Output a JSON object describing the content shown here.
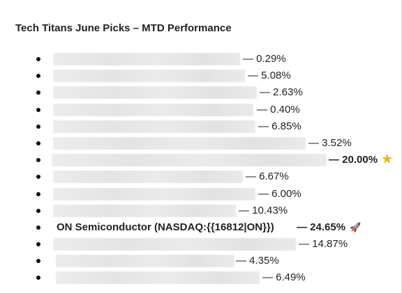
{
  "document": {
    "title": "Tech Titans June Picks – MTD Performance"
  },
  "picks": [
    {
      "name": "",
      "change": "— 0.29%",
      "bold": false,
      "badge": ""
    },
    {
      "name": "",
      "change": "— 5.08%",
      "bold": false,
      "badge": ""
    },
    {
      "name": "",
      "change": "— 2.63%",
      "bold": false,
      "badge": ""
    },
    {
      "name": "",
      "change": "— 0.40%",
      "bold": false,
      "badge": ""
    },
    {
      "name": "",
      "change": "— 6.85%",
      "bold": false,
      "badge": ""
    },
    {
      "name": "",
      "change": "— 3.52%",
      "bold": false,
      "badge": ""
    },
    {
      "name": "",
      "change": "— 20.00%",
      "bold": true,
      "badge": "star-icon"
    },
    {
      "name": "",
      "change": "— 6.67%",
      "bold": false,
      "badge": ""
    },
    {
      "name": "",
      "change": "— 6.00%",
      "bold": false,
      "badge": ""
    },
    {
      "name": "",
      "change": "— 10.43%",
      "bold": false,
      "badge": ""
    },
    {
      "name": "ON Semiconductor (NASDAQ:{{16812|ON}})",
      "change": "— 24.65%",
      "bold": true,
      "badge": "rocket-icon"
    },
    {
      "name": "",
      "change": "— 14.87%",
      "bold": false,
      "badge": ""
    },
    {
      "name": "",
      "change": "— 4.35%",
      "bold": false,
      "badge": ""
    },
    {
      "name": "",
      "change": "— 6.49%",
      "bold": false,
      "badge": ""
    }
  ]
}
